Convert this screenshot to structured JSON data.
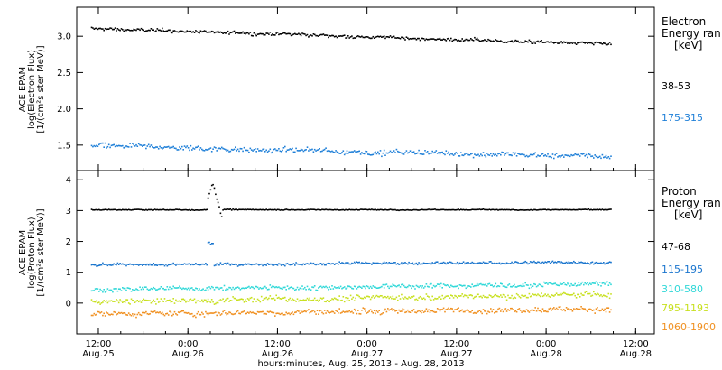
{
  "chart_data": {
    "type": "scatter",
    "xlabel": "hours:minutes, Aug. 25, 2013 - Aug. 28, 2013",
    "x_ticks": [
      {
        "hour": 12,
        "time": "12:00",
        "date": "Aug.25"
      },
      {
        "hour": 24,
        "time": "0:00",
        "date": "Aug.26"
      },
      {
        "hour": 36,
        "time": "12:00",
        "date": "Aug.26"
      },
      {
        "hour": 48,
        "time": "0:00",
        "date": "Aug.27"
      },
      {
        "hour": 60,
        "time": "12:00",
        "date": "Aug.27"
      },
      {
        "hour": 72,
        "time": "0:00",
        "date": "Aug.28"
      },
      {
        "hour": 84,
        "time": "12:00",
        "date": "Aug.28"
      }
    ],
    "x_range_hours": [
      9.1,
      86.5
    ],
    "panels": [
      {
        "name": "electron",
        "ylabel_lines": [
          "ACE EPAM",
          "log(Electron Flux)",
          "[1/(cm²s ster MeV)]"
        ],
        "ylim": [
          1.15,
          3.4
        ],
        "yticks": [
          1.5,
          2.0,
          2.5,
          3.0
        ],
        "ytick_labels": [
          "1.5",
          "2.0",
          "2.5",
          "3.0"
        ],
        "legend_title_lines": [
          "Electron",
          "Energy ran",
          "[keV]"
        ],
        "series": [
          {
            "name": "38-53",
            "color": "#000000",
            "start": 3.12,
            "end": 2.9,
            "noise": 0.03
          },
          {
            "name": "175-315",
            "color": "#2080d8",
            "start": 1.5,
            "end": 1.35,
            "noise": 0.05
          }
        ]
      },
      {
        "name": "proton",
        "ylabel_lines": [
          "ACE EPAM",
          "log(Proton Flux)",
          "[1/(cm²s ster MeV)]"
        ],
        "ylim": [
          -1.0,
          4.3
        ],
        "yticks": [
          0,
          1,
          2,
          3,
          4
        ],
        "ytick_labels": [
          "0",
          "1",
          "2",
          "3",
          "4"
        ],
        "legend_title_lines": [
          "Proton",
          "Energy ran",
          "[keV]"
        ],
        "series": [
          {
            "name": "47-68",
            "color": "#000000",
            "start": 3.05,
            "end": 3.05,
            "noise": 0.02
          },
          {
            "name": "115-195",
            "color": "#1874cd",
            "start": 1.25,
            "end": 1.35,
            "noise": 0.06
          },
          {
            "name": "310-580",
            "color": "#30d8d8",
            "start": 0.45,
            "end": 0.65,
            "noise": 0.1
          },
          {
            "name": "795-1193",
            "color": "#c8e020",
            "start": 0.05,
            "end": 0.3,
            "noise": 0.12
          },
          {
            "name": "1060-1900",
            "color": "#f09020",
            "start": -0.35,
            "end": -0.15,
            "noise": 0.12
          }
        ]
      }
    ]
  }
}
